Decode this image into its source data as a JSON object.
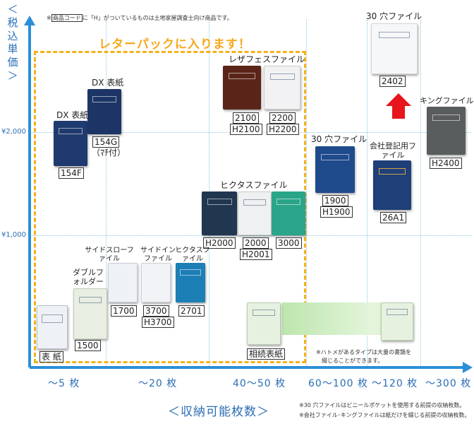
{
  "header_note": {
    "prefix": "※",
    "code_word": "商品コード",
    "suffix": "に「H」がついているものは土地家屋調査士向け商品です。"
  },
  "y_axis_label": "＜税込単価＞",
  "x_axis_label": "＜収納可能枚数＞",
  "letterpack_label": "レターパックに入ります！",
  "footnotes": [
    "※30 穴ファイルはビニールポケットを使用する前提の収納枚数。",
    "※会社ファイル･キングファイルは紙だけを綴じる前提の収納枚数。"
  ],
  "hatome_note": [
    "※ハトメがあるタイプは大量の書類を",
    "　綴じることができます。"
  ],
  "colors": {
    "axis": "#2b8fd6",
    "letterpack_border": "#f5b21a",
    "letterpack_text": "#f5a81a",
    "arrow": "#e8141b",
    "band": "#bde6ad"
  },
  "chart_data": {
    "type": "scatter",
    "x_categories": [
      "～5 枚",
      "～20 枚",
      "40～50 枚",
      "60～100 枚",
      "～120 枚",
      "～300 枚"
    ],
    "y_ticks": [
      "¥1,000",
      "¥2,000"
    ],
    "y_tick_values": [
      1000,
      2000
    ],
    "groups": [
      {
        "title": "DX 表紙",
        "products": [
          "154F"
        ]
      },
      {
        "title": "DX 表紙",
        "products": [
          "154G",
          "（ﾏﾁ付）"
        ]
      },
      {
        "title": "レザフェスファイル",
        "products": [
          "2100",
          "H2100",
          "2200",
          "H2200"
        ]
      },
      {
        "title": "ヒクタスファイル",
        "products": [
          "H2000",
          "2000",
          "H2001",
          "3000"
        ]
      },
      {
        "title": "30 穴ファイル",
        "products": [
          "1900",
          "H1900"
        ]
      },
      {
        "title": "会社登記用ファイル",
        "products": [
          "26A1"
        ]
      },
      {
        "title": "30 穴ファイル",
        "products": [
          "2402"
        ]
      },
      {
        "title": "キングファイル G",
        "products": [
          "H2400"
        ]
      },
      {
        "title": "ダブルフォルダー",
        "products": [
          "1500"
        ]
      },
      {
        "title": "サイドスローファイル",
        "products": [
          "1700"
        ]
      },
      {
        "title": "サイドインファイル",
        "products": [
          "3700",
          "H3700"
        ]
      },
      {
        "title": "ヒクタスファイル",
        "products": [
          "2701"
        ]
      },
      {
        "title": "",
        "products": [
          "表 紙"
        ]
      },
      {
        "title": "",
        "products": [
          "相続表紙"
        ]
      }
    ]
  }
}
